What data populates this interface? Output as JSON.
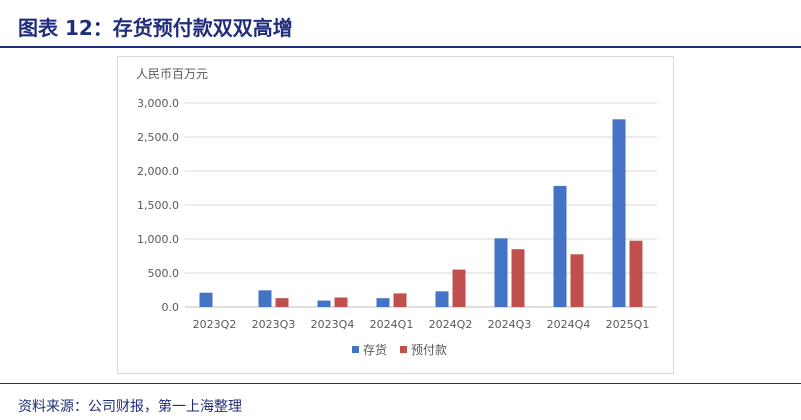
{
  "figure": {
    "title": "图表 12：存货预付款双双高增",
    "source": "资料来源：公司财报，第一上海整理"
  },
  "chart_data": {
    "type": "bar",
    "unit_label": "人民币百万元",
    "categories": [
      "2023Q2",
      "2023Q3",
      "2023Q4",
      "2024Q1",
      "2024Q2",
      "2024Q3",
      "2024Q4",
      "2025Q1"
    ],
    "series": [
      {
        "name": "存货",
        "color": "#4472c4",
        "values": [
          210,
          245,
          95,
          130,
          230,
          1010,
          1780,
          2760
        ]
      },
      {
        "name": "预付款",
        "color": "#c0504d",
        "values": [
          0,
          130,
          140,
          200,
          550,
          850,
          775,
          975
        ]
      }
    ],
    "ylim": [
      0,
      3000
    ],
    "yticks": [
      0,
      500,
      1000,
      1500,
      2000,
      2500,
      3000
    ],
    "ytick_labels": [
      "0.0",
      "500.0",
      "1,000.0",
      "1,500.0",
      "2,000.0",
      "2,500.0",
      "3,000.0"
    ],
    "grid": true,
    "legend_position": "bottom"
  }
}
